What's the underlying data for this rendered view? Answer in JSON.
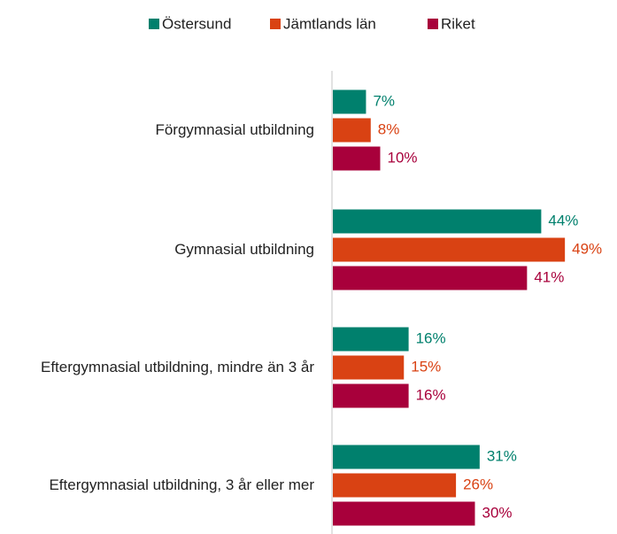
{
  "chart_data": {
    "type": "barh",
    "categories": [
      "Förgymnasial utbildning",
      "Gymnasial utbildning",
      "Eftergymnasial utbildning, mindre än 3 år",
      "Eftergymnasial utbildning, 3 år eller mer"
    ],
    "series": [
      {
        "name": "Östersund",
        "color": "#00806d",
        "values": [
          7,
          44,
          16,
          31
        ],
        "value_labels": [
          "7%",
          "44%",
          "16%",
          "31%"
        ]
      },
      {
        "name": "Jämtlands län",
        "color": "#d94213",
        "values": [
          8,
          49,
          15,
          26
        ],
        "value_labels": [
          "8%",
          "49%",
          "15%",
          "26%"
        ]
      },
      {
        "name": "Riket",
        "color": "#a8003b",
        "values": [
          10,
          41,
          16,
          30
        ],
        "value_labels": [
          "10%",
          "41%",
          "16%",
          "30%"
        ]
      }
    ],
    "legend": "top"
  }
}
